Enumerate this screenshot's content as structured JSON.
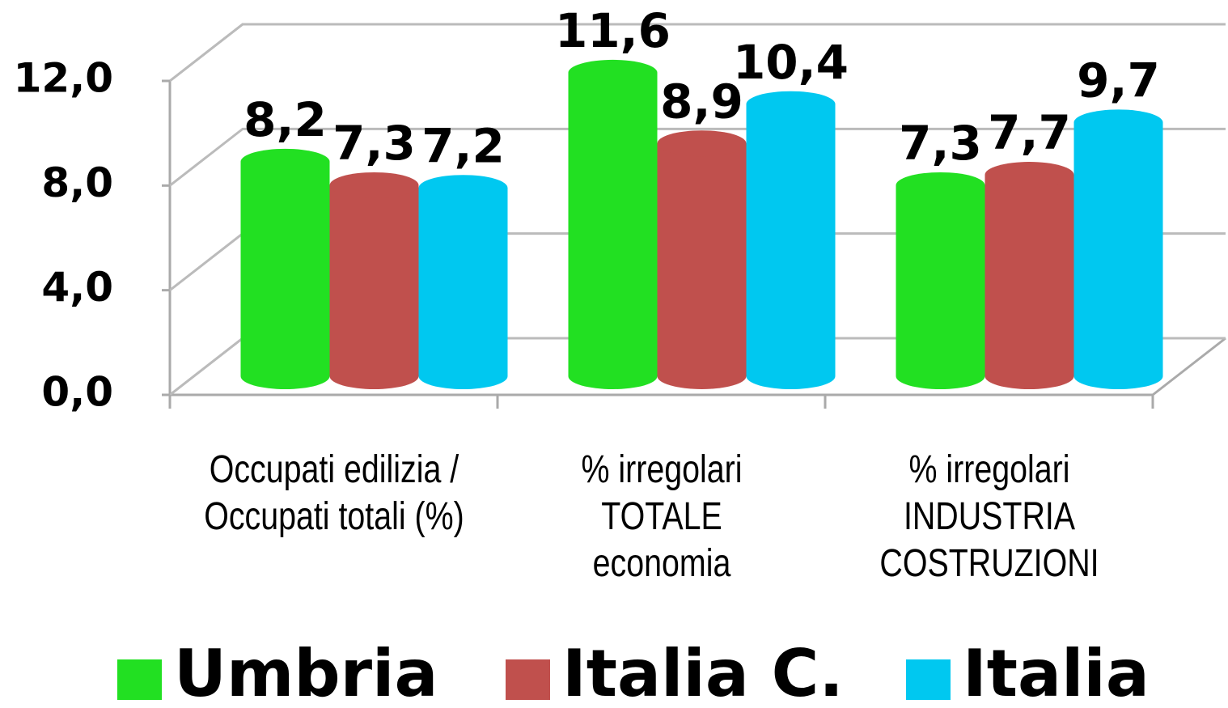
{
  "chart_data": {
    "type": "bar",
    "categories": [
      "Occupati edilizia / Occupati totali (%)",
      "% irregolari TOTALE economia",
      "% irregolari INDUSTRIA COSTRUZIONI"
    ],
    "series": [
      {
        "name": "Umbria",
        "color": "#22e022",
        "values": [
          8.2,
          11.6,
          7.3
        ],
        "value_labels": [
          "8,2",
          "11,6",
          "7,3"
        ]
      },
      {
        "name": "Italia C.",
        "color": "#c0504d",
        "values": [
          7.3,
          8.9,
          7.7
        ],
        "value_labels": [
          "7,3",
          "8,9",
          "7,7"
        ]
      },
      {
        "name": "Italia",
        "color": "#00c8f0",
        "values": [
          7.2,
          10.4,
          9.7
        ],
        "value_labels": [
          "7,2",
          "10,4",
          "9,7"
        ]
      }
    ],
    "ylim": [
      0,
      12
    ],
    "yticks": [
      {
        "value": 0,
        "label": "0,0"
      },
      {
        "value": 4,
        "label": "4,0"
      },
      {
        "value": 8,
        "label": "8,0"
      },
      {
        "value": 12,
        "label": "12,0"
      }
    ],
    "grid": true,
    "legend": "bottom"
  }
}
